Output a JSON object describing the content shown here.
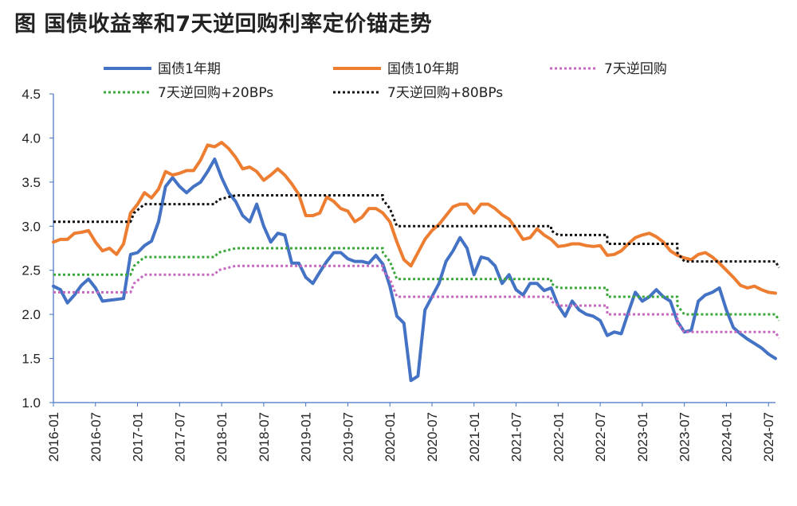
{
  "title": "图  国债收益率和7天逆回购利率定价锚走势",
  "chart_data": {
    "type": "line",
    "title": "图  国债收益率和7天逆回购利率定价锚走势",
    "xlabel": "",
    "ylabel": "",
    "ylim": [
      1.0,
      4.5
    ],
    "yticks": [
      "1.0",
      "1.5",
      "2.0",
      "2.5",
      "3.0",
      "3.5",
      "4.0",
      "4.5"
    ],
    "xticks": [
      "2016-01",
      "2016-07",
      "2017-01",
      "2017-07",
      "2018-01",
      "2018-07",
      "2019-01",
      "2019-07",
      "2020-01",
      "2020-07",
      "2021-01",
      "2021-07",
      "2022-01",
      "2022-07",
      "2023-01",
      "2023-07",
      "2024-01",
      "2024-07"
    ],
    "grid": false,
    "legend_position": "top",
    "series": [
      {
        "name": "国债1年期",
        "color": "#4472C4",
        "style": "solid",
        "points": [
          [
            0,
            2.32
          ],
          [
            1,
            2.28
          ],
          [
            2,
            2.13
          ],
          [
            3,
            2.22
          ],
          [
            4,
            2.33
          ],
          [
            5,
            2.4
          ],
          [
            6,
            2.3
          ],
          [
            7,
            2.15
          ],
          [
            8,
            2.16
          ],
          [
            9,
            2.17
          ],
          [
            10,
            2.18
          ],
          [
            11,
            2.68
          ],
          [
            12,
            2.7
          ],
          [
            13,
            2.78
          ],
          [
            14,
            2.83
          ],
          [
            15,
            3.05
          ],
          [
            16,
            3.45
          ],
          [
            17,
            3.55
          ],
          [
            18,
            3.45
          ],
          [
            19,
            3.38
          ],
          [
            20,
            3.45
          ],
          [
            21,
            3.5
          ],
          [
            22,
            3.62
          ],
          [
            23,
            3.76
          ],
          [
            24,
            3.55
          ],
          [
            25,
            3.38
          ],
          [
            26,
            3.28
          ],
          [
            27,
            3.12
          ],
          [
            28,
            3.05
          ],
          [
            29,
            3.25
          ],
          [
            30,
            3.0
          ],
          [
            31,
            2.82
          ],
          [
            32,
            2.92
          ],
          [
            33,
            2.9
          ],
          [
            34,
            2.58
          ],
          [
            35,
            2.58
          ],
          [
            36,
            2.42
          ],
          [
            37,
            2.35
          ],
          [
            38,
            2.48
          ],
          [
            39,
            2.6
          ],
          [
            40,
            2.7
          ],
          [
            41,
            2.7
          ],
          [
            42,
            2.63
          ],
          [
            43,
            2.6
          ],
          [
            44,
            2.6
          ],
          [
            45,
            2.58
          ],
          [
            46,
            2.67
          ],
          [
            47,
            2.57
          ],
          [
            48,
            2.32
          ],
          [
            49,
            1.98
          ],
          [
            50,
            1.9
          ],
          [
            51,
            1.25
          ],
          [
            52,
            1.3
          ],
          [
            53,
            2.05
          ],
          [
            54,
            2.2
          ],
          [
            55,
            2.35
          ],
          [
            56,
            2.6
          ],
          [
            57,
            2.72
          ],
          [
            58,
            2.87
          ],
          [
            59,
            2.75
          ],
          [
            60,
            2.45
          ],
          [
            61,
            2.65
          ],
          [
            62,
            2.63
          ],
          [
            63,
            2.55
          ],
          [
            64,
            2.35
          ],
          [
            65,
            2.45
          ],
          [
            66,
            2.28
          ],
          [
            67,
            2.22
          ],
          [
            68,
            2.35
          ],
          [
            69,
            2.35
          ],
          [
            70,
            2.27
          ],
          [
            71,
            2.3
          ],
          [
            72,
            2.1
          ],
          [
            73,
            1.98
          ],
          [
            74,
            2.15
          ],
          [
            75,
            2.05
          ],
          [
            76,
            2.0
          ],
          [
            77,
            1.98
          ],
          [
            78,
            1.93
          ],
          [
            79,
            1.76
          ],
          [
            80,
            1.8
          ],
          [
            81,
            1.78
          ],
          [
            82,
            2.02
          ],
          [
            83,
            2.25
          ],
          [
            84,
            2.15
          ],
          [
            85,
            2.2
          ],
          [
            86,
            2.28
          ],
          [
            87,
            2.2
          ],
          [
            88,
            2.15
          ],
          [
            89,
            1.92
          ],
          [
            90,
            1.8
          ],
          [
            91,
            1.82
          ],
          [
            92,
            2.15
          ],
          [
            93,
            2.22
          ],
          [
            94,
            2.25
          ],
          [
            95,
            2.3
          ],
          [
            96,
            2.05
          ],
          [
            97,
            1.85
          ],
          [
            98,
            1.78
          ],
          [
            99,
            1.72
          ],
          [
            100,
            1.67
          ],
          [
            101,
            1.62
          ],
          [
            102,
            1.55
          ],
          [
            103,
            1.5
          ]
        ]
      },
      {
        "name": "国债10年期",
        "color": "#ED7D31",
        "style": "solid",
        "points": [
          [
            0,
            2.82
          ],
          [
            1,
            2.85
          ],
          [
            2,
            2.85
          ],
          [
            3,
            2.92
          ],
          [
            4,
            2.93
          ],
          [
            5,
            2.95
          ],
          [
            6,
            2.82
          ],
          [
            7,
            2.72
          ],
          [
            8,
            2.75
          ],
          [
            9,
            2.68
          ],
          [
            10,
            2.8
          ],
          [
            11,
            3.15
          ],
          [
            12,
            3.25
          ],
          [
            13,
            3.38
          ],
          [
            14,
            3.32
          ],
          [
            15,
            3.42
          ],
          [
            16,
            3.62
          ],
          [
            17,
            3.58
          ],
          [
            18,
            3.6
          ],
          [
            19,
            3.63
          ],
          [
            20,
            3.63
          ],
          [
            21,
            3.75
          ],
          [
            22,
            3.92
          ],
          [
            23,
            3.9
          ],
          [
            24,
            3.95
          ],
          [
            25,
            3.88
          ],
          [
            26,
            3.78
          ],
          [
            27,
            3.65
          ],
          [
            28,
            3.67
          ],
          [
            29,
            3.62
          ],
          [
            30,
            3.52
          ],
          [
            31,
            3.58
          ],
          [
            32,
            3.65
          ],
          [
            33,
            3.58
          ],
          [
            34,
            3.48
          ],
          [
            35,
            3.36
          ],
          [
            36,
            3.12
          ],
          [
            37,
            3.12
          ],
          [
            38,
            3.15
          ],
          [
            39,
            3.33
          ],
          [
            40,
            3.28
          ],
          [
            41,
            3.2
          ],
          [
            42,
            3.17
          ],
          [
            43,
            3.05
          ],
          [
            44,
            3.1
          ],
          [
            45,
            3.2
          ],
          [
            46,
            3.2
          ],
          [
            47,
            3.15
          ],
          [
            48,
            3.05
          ],
          [
            49,
            2.82
          ],
          [
            50,
            2.62
          ],
          [
            51,
            2.55
          ],
          [
            52,
            2.7
          ],
          [
            53,
            2.85
          ],
          [
            54,
            2.95
          ],
          [
            55,
            3.02
          ],
          [
            56,
            3.12
          ],
          [
            57,
            3.22
          ],
          [
            58,
            3.25
          ],
          [
            59,
            3.25
          ],
          [
            60,
            3.15
          ],
          [
            61,
            3.25
          ],
          [
            62,
            3.25
          ],
          [
            63,
            3.2
          ],
          [
            64,
            3.13
          ],
          [
            65,
            3.08
          ],
          [
            66,
            2.97
          ],
          [
            67,
            2.85
          ],
          [
            68,
            2.87
          ],
          [
            69,
            2.97
          ],
          [
            70,
            2.9
          ],
          [
            71,
            2.85
          ],
          [
            72,
            2.77
          ],
          [
            73,
            2.78
          ],
          [
            74,
            2.8
          ],
          [
            75,
            2.8
          ],
          [
            76,
            2.78
          ],
          [
            77,
            2.77
          ],
          [
            78,
            2.78
          ],
          [
            79,
            2.67
          ],
          [
            80,
            2.68
          ],
          [
            81,
            2.72
          ],
          [
            82,
            2.8
          ],
          [
            83,
            2.87
          ],
          [
            84,
            2.9
          ],
          [
            85,
            2.92
          ],
          [
            86,
            2.88
          ],
          [
            87,
            2.82
          ],
          [
            88,
            2.72
          ],
          [
            89,
            2.67
          ],
          [
            90,
            2.64
          ],
          [
            91,
            2.62
          ],
          [
            92,
            2.68
          ],
          [
            93,
            2.7
          ],
          [
            94,
            2.65
          ],
          [
            95,
            2.58
          ],
          [
            96,
            2.5
          ],
          [
            97,
            2.42
          ],
          [
            98,
            2.33
          ],
          [
            99,
            2.3
          ],
          [
            100,
            2.32
          ],
          [
            101,
            2.28
          ],
          [
            102,
            2.25
          ],
          [
            103,
            2.24
          ]
        ]
      },
      {
        "name": "7天逆回购",
        "color": "#C768C0",
        "style": "dotted",
        "points": [
          [
            0,
            2.25
          ],
          [
            11,
            2.25
          ],
          [
            11.5,
            2.35
          ],
          [
            13,
            2.45
          ],
          [
            23,
            2.45
          ],
          [
            23.5,
            2.5
          ],
          [
            26,
            2.55
          ],
          [
            47,
            2.55
          ],
          [
            47,
            2.5
          ],
          [
            48,
            2.4
          ],
          [
            49,
            2.2
          ],
          [
            71,
            2.2
          ],
          [
            71,
            2.15
          ],
          [
            72,
            2.1
          ],
          [
            79,
            2.1
          ],
          [
            79,
            2.0
          ],
          [
            89,
            2.0
          ],
          [
            89,
            1.9
          ],
          [
            90,
            1.8
          ],
          [
            103,
            1.8
          ],
          [
            103.5,
            1.73
          ]
        ]
      },
      {
        "name": "7天逆回购+20BPs",
        "color": "#3AA83A",
        "style": "dotted",
        "points": [
          [
            0,
            2.45
          ],
          [
            11,
            2.45
          ],
          [
            11.5,
            2.55
          ],
          [
            13,
            2.65
          ],
          [
            23,
            2.65
          ],
          [
            23.5,
            2.7
          ],
          [
            26,
            2.75
          ],
          [
            47,
            2.75
          ],
          [
            47,
            2.7
          ],
          [
            48,
            2.6
          ],
          [
            49,
            2.4
          ],
          [
            71,
            2.4
          ],
          [
            71,
            2.35
          ],
          [
            72,
            2.3
          ],
          [
            79,
            2.3
          ],
          [
            79,
            2.2
          ],
          [
            89,
            2.2
          ],
          [
            89,
            2.1
          ],
          [
            90,
            2.0
          ],
          [
            103,
            2.0
          ],
          [
            103.5,
            1.93
          ]
        ]
      },
      {
        "name": "7天逆回购+80BPs",
        "color": "#111111",
        "style": "dotted",
        "points": [
          [
            0,
            3.05
          ],
          [
            11,
            3.05
          ],
          [
            11.5,
            3.15
          ],
          [
            13,
            3.25
          ],
          [
            23,
            3.25
          ],
          [
            23.5,
            3.3
          ],
          [
            26,
            3.35
          ],
          [
            47,
            3.35
          ],
          [
            47,
            3.3
          ],
          [
            48,
            3.2
          ],
          [
            49,
            3.0
          ],
          [
            71,
            3.0
          ],
          [
            71,
            2.95
          ],
          [
            72,
            2.9
          ],
          [
            79,
            2.9
          ],
          [
            79,
            2.8
          ],
          [
            89,
            2.8
          ],
          [
            89,
            2.7
          ],
          [
            90,
            2.6
          ],
          [
            103,
            2.6
          ],
          [
            103.5,
            2.53
          ]
        ]
      }
    ]
  }
}
